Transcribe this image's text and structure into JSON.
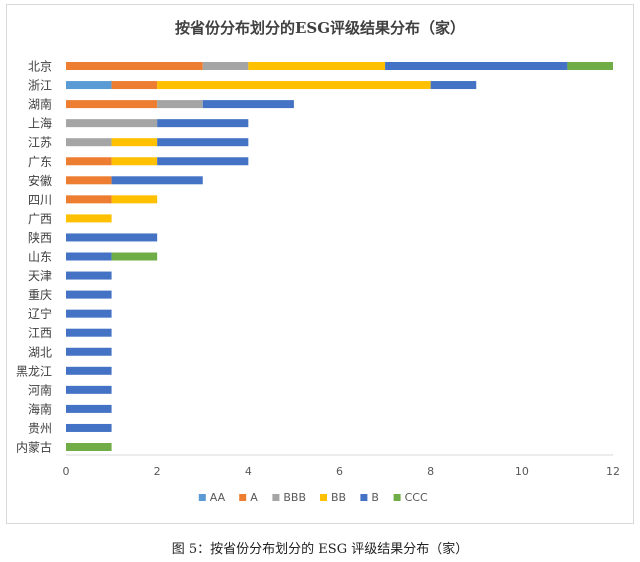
{
  "chart_data": {
    "type": "bar",
    "orientation": "horizontal",
    "stacked": true,
    "title": "按省份分布划分的ESG评级结果分布（家）",
    "xlabel": "",
    "ylabel": "",
    "xlim": [
      0,
      12
    ],
    "xticks": [
      0,
      2,
      4,
      6,
      8,
      10,
      12
    ],
    "grid": false,
    "legend_position": "bottom",
    "categories": [
      "北京",
      "浙江",
      "湖南",
      "上海",
      "江苏",
      "广东",
      "安徽",
      "四川",
      "广西",
      "陕西",
      "山东",
      "天津",
      "重庆",
      "辽宁",
      "江西",
      "湖北",
      "黑龙江",
      "河南",
      "海南",
      "贵州",
      "内蒙古"
    ],
    "series": [
      {
        "name": "AA",
        "color": "#5b9bd5",
        "values": [
          0,
          1,
          0,
          0,
          0,
          0,
          0,
          0,
          0,
          0,
          0,
          0,
          0,
          0,
          0,
          0,
          0,
          0,
          0,
          0,
          0
        ]
      },
      {
        "name": "A",
        "color": "#ed7d31",
        "values": [
          3,
          1,
          2,
          0,
          0,
          1,
          1,
          1,
          0,
          0,
          0,
          0,
          0,
          0,
          0,
          0,
          0,
          0,
          0,
          0,
          0
        ]
      },
      {
        "name": "BBB",
        "color": "#a5a5a5",
        "values": [
          1,
          0,
          1,
          2,
          1,
          0,
          0,
          0,
          0,
          0,
          0,
          0,
          0,
          0,
          0,
          0,
          0,
          0,
          0,
          0,
          0
        ]
      },
      {
        "name": "BB",
        "color": "#ffc000",
        "values": [
          3,
          6,
          0,
          0,
          1,
          1,
          0,
          1,
          1,
          0,
          0,
          0,
          0,
          0,
          0,
          0,
          0,
          0,
          0,
          0,
          0
        ]
      },
      {
        "name": "B",
        "color": "#4472c4",
        "values": [
          4,
          1,
          2,
          2,
          2,
          2,
          2,
          0,
          0,
          2,
          1,
          1,
          1,
          1,
          1,
          1,
          1,
          1,
          1,
          1,
          0
        ]
      },
      {
        "name": "CCC",
        "color": "#70ad47",
        "values": [
          1,
          0,
          0,
          0,
          0,
          0,
          0,
          0,
          0,
          0,
          1,
          0,
          0,
          0,
          0,
          0,
          0,
          0,
          0,
          0,
          1
        ]
      }
    ]
  },
  "caption": "图 5：按省份分布划分的 ESG 评级结果分布（家）"
}
